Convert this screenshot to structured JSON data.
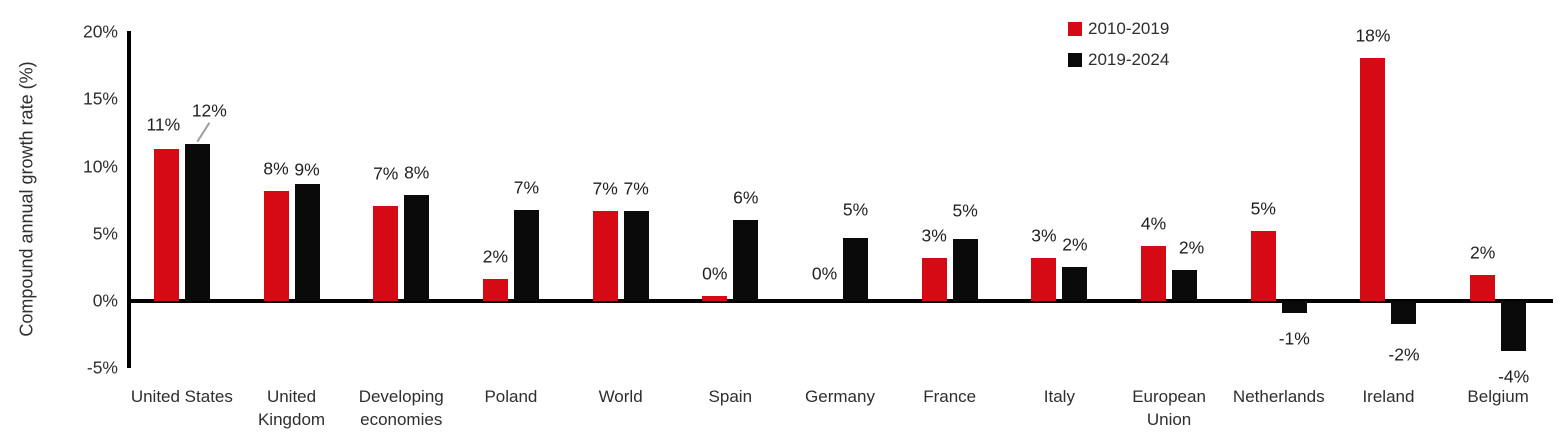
{
  "chart_data": {
    "type": "bar",
    "title": "",
    "ylabel": "Compound annual growth rate (%)",
    "xlabel": "",
    "ylim": [
      -5,
      20
    ],
    "grid": false,
    "legend_position": "top-right",
    "axis_color": "#000000",
    "text_color": "#2e2e2e",
    "leader_line_color": "#9e9e9e",
    "y_ticks": [
      {
        "value": 20,
        "label": "20%"
      },
      {
        "value": 15,
        "label": "15%"
      },
      {
        "value": 10,
        "label": "10%"
      },
      {
        "value": 5,
        "label": "5%"
      },
      {
        "value": 0,
        "label": "0%"
      },
      {
        "value": -5,
        "label": "-5%"
      }
    ],
    "categories": [
      "United States",
      "United Kingdom",
      "Developing economies",
      "Poland",
      "World",
      "Spain",
      "Germany",
      "France",
      "Italy",
      "European Union",
      "Netherlands",
      "Ireland",
      "Belgium"
    ],
    "series": [
      {
        "name": "2010-2019",
        "color": "#d60a14",
        "values": [
          11.3,
          8.2,
          7.1,
          1.6,
          6.7,
          0.4,
          0,
          3.2,
          3.2,
          4.1,
          5.2,
          18.1,
          1.9
        ],
        "labels": [
          "11%",
          "8%",
          "7%",
          "2%",
          "7%",
          "0%",
          "0%",
          "3%",
          "3%",
          "4%",
          "5%",
          "18%",
          "2%"
        ]
      },
      {
        "name": "2019-2024",
        "color": "#0a0a0a",
        "values": [
          11.7,
          8.7,
          7.9,
          6.8,
          6.7,
          6.0,
          4.7,
          4.6,
          2.5,
          2.3,
          -0.9,
          -1.7,
          -3.7
        ],
        "labels": [
          "12%",
          "9%",
          "8%",
          "7%",
          "7%",
          "6%",
          "5%",
          "5%",
          "2%",
          "2%",
          "-1%",
          "-2%",
          "-4%"
        ]
      }
    ],
    "label_nudges": {
      "0,0": {
        "dx": -3,
        "dy": -2
      },
      "1,0": {
        "dx": 12,
        "dy": -11,
        "leader": true
      },
      "1,1": {
        "dy": 8
      },
      "0,2": {
        "dy": -10
      },
      "0,6": {
        "dy": -5
      },
      "1,6": {
        "dy": -6
      },
      "1,7": {
        "dy": -6
      },
      "1,9": {
        "dx": 7
      },
      "1,11": {
        "dy": 5
      }
    }
  }
}
